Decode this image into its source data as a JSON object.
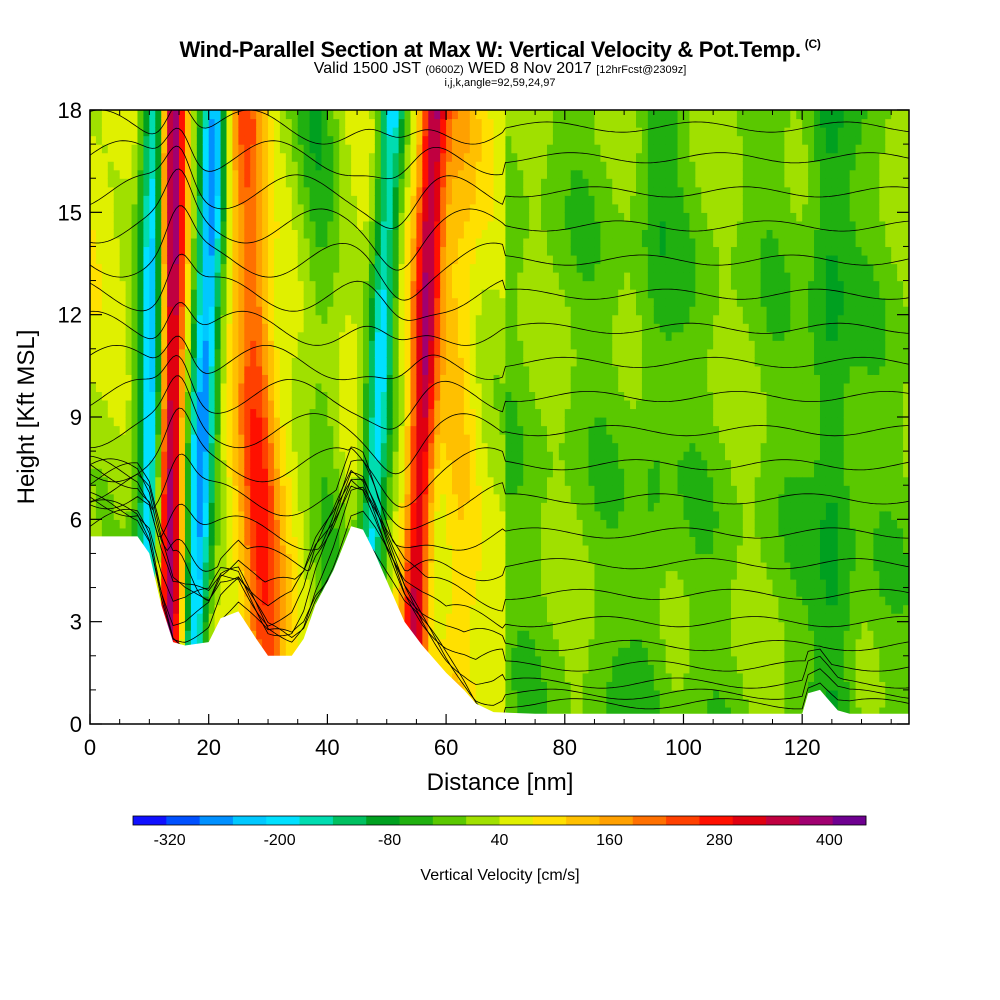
{
  "chart_data": {
    "type": "heatmap",
    "title": "Wind-Parallel Section at Max W: Vertical Velocity & Pot.Temp.",
    "copyright_mark": "(C)",
    "subtitle": {
      "valid": "Valid 1500 JST",
      "utc": "(0600Z)",
      "date": "WED 8 Nov 2017",
      "forecast": "[12hrFcst@2309z]"
    },
    "grid_info": "i,j,k,angle=92,59,24,97",
    "xlabel": "Distance [nm]",
    "ylabel": "Height [Kft MSL]",
    "xlim": [
      0,
      138
    ],
    "ylim": [
      0,
      18
    ],
    "xticks": [
      "0",
      "20",
      "40",
      "60",
      "80",
      "100",
      "120"
    ],
    "yticks": [
      "0",
      "3",
      "6",
      "9",
      "12",
      "15",
      "18"
    ],
    "colorbar": {
      "label": "Vertical Velocity [cm/s]",
      "ticks": [
        "-320",
        "-200",
        "-80",
        "40",
        "160",
        "280",
        "400"
      ],
      "min": -360,
      "max": 440,
      "colors": [
        "#1010ff",
        "#0050ff",
        "#0090ff",
        "#00c8ff",
        "#00e0ff",
        "#00dcb0",
        "#00c060",
        "#00a020",
        "#20b010",
        "#5ac800",
        "#a0e000",
        "#e0f000",
        "#ffe000",
        "#ffc000",
        "#ffa000",
        "#ff7000",
        "#ff4000",
        "#ff1000",
        "#e00010",
        "#c00040",
        "#a00070",
        "#6e0090"
      ]
    },
    "terrain": [
      [
        0,
        5.5
      ],
      [
        6,
        5.5
      ],
      [
        8,
        5.5
      ],
      [
        10,
        5.0
      ],
      [
        12,
        3.5
      ],
      [
        14,
        2.4
      ],
      [
        16,
        2.3
      ],
      [
        20,
        2.4
      ],
      [
        22,
        3.1
      ],
      [
        25,
        3.3
      ],
      [
        28,
        2.5
      ],
      [
        30,
        2.0
      ],
      [
        34,
        2.0
      ],
      [
        36,
        2.5
      ],
      [
        38,
        3.5
      ],
      [
        41,
        4.5
      ],
      [
        44,
        5.8
      ],
      [
        46,
        5.7
      ],
      [
        48,
        5.0
      ],
      [
        50,
        4.2
      ],
      [
        53,
        3.0
      ],
      [
        56,
        2.3
      ],
      [
        60,
        1.5
      ],
      [
        63,
        1.0
      ],
      [
        65,
        0.6
      ],
      [
        68,
        0.35
      ],
      [
        75,
        0.3
      ],
      [
        90,
        0.3
      ],
      [
        110,
        0.3
      ],
      [
        120,
        0.3
      ],
      [
        121,
        0.9
      ],
      [
        123,
        1.0
      ],
      [
        124,
        0.8
      ],
      [
        126,
        0.4
      ],
      [
        128,
        0.3
      ],
      [
        138,
        0.3
      ]
    ],
    "updraft_bands": [
      {
        "x_base": 13,
        "x_top": 14,
        "w": 380
      },
      {
        "x_base": 17,
        "x_top": 21,
        "w": -300
      },
      {
        "x_base": 10,
        "x_top": 11,
        "w": -300
      },
      {
        "x_base": 30,
        "x_top": 26,
        "w": 200
      },
      {
        "x_base": 54,
        "x_top": 58,
        "w": 300
      },
      {
        "x_base": 46,
        "x_top": 51,
        "w": -240
      },
      {
        "x_base": 41,
        "x_top": 38,
        "w": -80
      },
      {
        "x_base": 62,
        "x_top": 62,
        "w": 80
      },
      {
        "x_base": 94,
        "x_top": 96,
        "w": -40
      },
      {
        "x_base": 126,
        "x_top": 124,
        "w": -80
      }
    ]
  }
}
